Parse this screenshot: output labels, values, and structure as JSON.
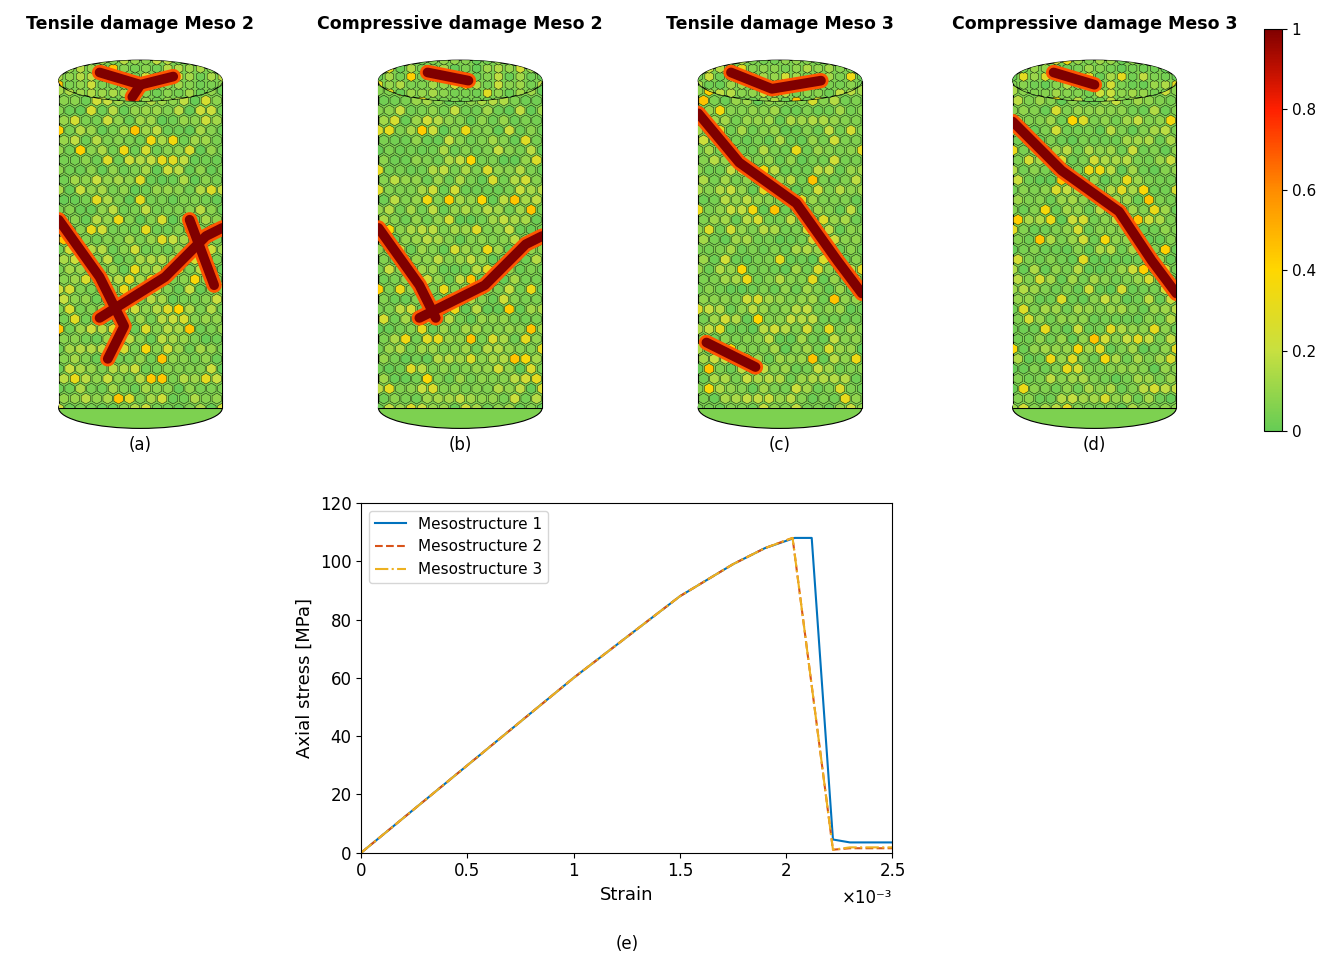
{
  "panels": [
    {
      "title": "Tensile damage Meso 2",
      "label": "(a)"
    },
    {
      "title": "Compressive damage Meso 2",
      "label": "(b)"
    },
    {
      "title": "Tensile damage Meso 3",
      "label": "(c)"
    },
    {
      "title": "Compressive damage Meso 3",
      "label": "(d)"
    }
  ],
  "colorbar": {
    "range": [
      0,
      1
    ],
    "ticks": [
      0,
      0.2,
      0.4,
      0.6,
      0.8,
      1
    ]
  },
  "chart_data": {
    "type": "line",
    "label": "(e)",
    "xlabel": "Strain",
    "ylabel": "Axial stress [MPa]",
    "x_multiplier": "×10⁻³",
    "xlim": [
      0,
      2.5
    ],
    "xticks": [
      0,
      0.5,
      1,
      1.5,
      2,
      2.5
    ],
    "ylim": [
      0,
      120
    ],
    "yticks": [
      0,
      20,
      40,
      60,
      80,
      100,
      120
    ],
    "legend": "upper left",
    "grid": false,
    "series": [
      {
        "name": "Mesostructure 1",
        "color": "#0072bd",
        "line_style": "solid",
        "x": [
          0,
          0.5,
          1.0,
          1.25,
          1.5,
          1.75,
          1.9,
          2.04,
          2.12,
          2.22,
          2.3,
          2.5
        ],
        "values": [
          0,
          30,
          60,
          74,
          88,
          99,
          104.5,
          108,
          108,
          4.5,
          3.5,
          3.5
        ]
      },
      {
        "name": "Mesostructure 2",
        "color": "#d95319",
        "line_style": "dashed",
        "x": [
          0,
          0.5,
          1.0,
          1.25,
          1.5,
          1.75,
          1.9,
          2.03,
          2.22,
          2.3,
          2.5
        ],
        "values": [
          0,
          30,
          60,
          74,
          88,
          99,
          104.5,
          108,
          1,
          1.5,
          1.5
        ]
      },
      {
        "name": "Mesostructure 3",
        "color": "#edb120",
        "line_style": "dashdot",
        "x": [
          0,
          0.5,
          1.0,
          1.25,
          1.5,
          1.75,
          1.9,
          2.03,
          2.22,
          2.3,
          2.5
        ],
        "values": [
          0,
          30,
          60,
          74,
          88,
          99,
          104.5,
          108,
          1,
          1.8,
          1.8
        ]
      }
    ]
  }
}
